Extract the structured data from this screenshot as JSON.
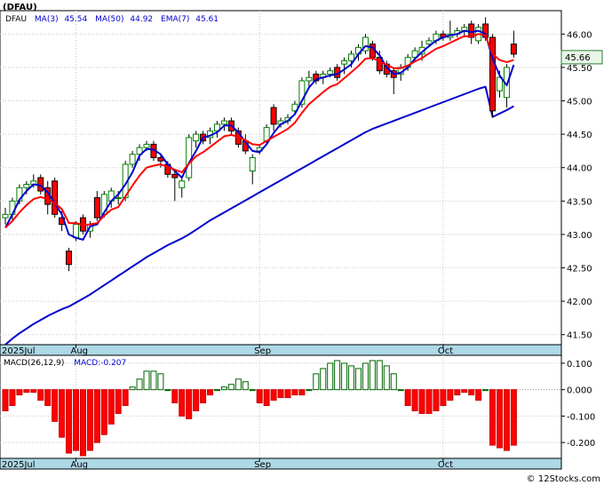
{
  "chart_data": [
    {
      "type": "candlestick",
      "title": "(DFAU)",
      "legend": {
        "ticker": "DFAU",
        "ma3": "MA(3)",
        "ma3_value": "45.54",
        "ma50": "MA(50)",
        "ma50_value": "44.92",
        "ema7": "EMA(7)",
        "ema7_value": "45.61"
      },
      "last_price_label": "45.66",
      "last_price": 45.66,
      "ylim": [
        41.35,
        46.35
      ],
      "y_ticks": [
        {
          "value": 41.5,
          "label": "41.50"
        },
        {
          "value": 42.0,
          "label": "42.00"
        },
        {
          "value": 42.5,
          "label": "42.50"
        },
        {
          "value": 43.0,
          "label": "43.00"
        },
        {
          "value": 43.5,
          "label": "43.50"
        },
        {
          "value": 44.0,
          "label": "44.00"
        },
        {
          "value": 44.5,
          "label": "44.50"
        },
        {
          "value": 45.0,
          "label": "45.00"
        },
        {
          "value": 45.5,
          "label": "45.50"
        },
        {
          "value": 46.0,
          "label": "46.00"
        }
      ],
      "x_labels": [
        {
          "index": 0,
          "label": "2025Jul"
        },
        {
          "index": 10,
          "label": "Aug"
        },
        {
          "index": 36,
          "label": "Sep"
        },
        {
          "index": 62,
          "label": "Oct"
        }
      ],
      "colors": {
        "up": "#008000",
        "down": "#ff0000",
        "ma": "#0000cc",
        "ema": "#ff0000"
      },
      "ohlc": [
        [
          43.25,
          43.4,
          43.15,
          43.3
        ],
        [
          43.3,
          43.55,
          43.2,
          43.5
        ],
        [
          43.5,
          43.75,
          43.45,
          43.7
        ],
        [
          43.7,
          43.8,
          43.6,
          43.75
        ],
        [
          43.75,
          43.9,
          43.7,
          43.8
        ],
        [
          43.85,
          43.9,
          43.6,
          43.65
        ],
        [
          43.7,
          43.8,
          43.3,
          43.45
        ],
        [
          43.8,
          43.85,
          43.25,
          43.3
        ],
        [
          43.25,
          43.35,
          43.05,
          43.15
        ],
        [
          42.75,
          42.8,
          42.45,
          42.55
        ],
        [
          42.95,
          43.2,
          42.9,
          43.15
        ],
        [
          43.25,
          43.3,
          43.0,
          43.05
        ],
        [
          43.05,
          43.2,
          42.95,
          43.15
        ],
        [
          43.55,
          43.65,
          43.2,
          43.25
        ],
        [
          43.3,
          43.65,
          43.25,
          43.6
        ],
        [
          43.5,
          43.7,
          43.4,
          43.65
        ],
        [
          43.55,
          43.65,
          43.45,
          43.55
        ],
        [
          43.55,
          44.1,
          43.5,
          44.05
        ],
        [
          44.05,
          44.25,
          44.0,
          44.2
        ],
        [
          44.2,
          44.35,
          44.1,
          44.3
        ],
        [
          44.3,
          44.4,
          44.25,
          44.35
        ],
        [
          44.35,
          44.4,
          44.1,
          44.15
        ],
        [
          44.15,
          44.2,
          44.0,
          44.1
        ],
        [
          44.05,
          44.1,
          43.85,
          43.9
        ],
        [
          43.9,
          43.95,
          43.5,
          43.85
        ],
        [
          43.7,
          43.85,
          43.55,
          43.8
        ],
        [
          43.85,
          44.5,
          43.8,
          44.45
        ],
        [
          44.4,
          44.55,
          44.3,
          44.5
        ],
        [
          44.5,
          44.55,
          44.35,
          44.4
        ],
        [
          44.45,
          44.6,
          44.35,
          44.55
        ],
        [
          44.55,
          44.7,
          44.45,
          44.65
        ],
        [
          44.65,
          44.75,
          44.55,
          44.7
        ],
        [
          44.7,
          44.75,
          44.5,
          44.55
        ],
        [
          44.55,
          44.6,
          44.3,
          44.35
        ],
        [
          44.4,
          44.5,
          44.2,
          44.25
        ],
        [
          43.95,
          44.2,
          43.75,
          44.15
        ],
        [
          44.25,
          44.35,
          44.2,
          44.3
        ],
        [
          44.4,
          44.65,
          44.35,
          44.6
        ],
        [
          44.9,
          44.95,
          44.55,
          44.65
        ],
        [
          44.65,
          44.75,
          44.6,
          44.7
        ],
        [
          44.7,
          44.8,
          44.65,
          44.75
        ],
        [
          44.85,
          45.0,
          44.8,
          44.95
        ],
        [
          44.95,
          45.35,
          44.9,
          45.3
        ],
        [
          45.3,
          45.45,
          45.2,
          45.35
        ],
        [
          45.4,
          45.45,
          45.25,
          45.3
        ],
        [
          45.35,
          45.45,
          45.25,
          45.4
        ],
        [
          45.4,
          45.5,
          45.35,
          45.45
        ],
        [
          45.5,
          45.55,
          45.3,
          45.35
        ],
        [
          45.55,
          45.65,
          45.4,
          45.6
        ],
        [
          45.6,
          45.75,
          45.5,
          45.7
        ],
        [
          45.7,
          45.85,
          45.6,
          45.8
        ],
        [
          45.75,
          46.0,
          45.7,
          45.95
        ],
        [
          45.85,
          45.9,
          45.6,
          45.65
        ],
        [
          45.65,
          45.75,
          45.4,
          45.45
        ],
        [
          45.55,
          45.6,
          45.35,
          45.4
        ],
        [
          45.45,
          45.5,
          45.1,
          45.35
        ],
        [
          45.4,
          45.55,
          45.3,
          45.5
        ],
        [
          45.5,
          45.7,
          45.45,
          45.65
        ],
        [
          45.65,
          45.8,
          45.6,
          45.75
        ],
        [
          45.7,
          45.9,
          45.6,
          45.8
        ],
        [
          45.85,
          45.95,
          45.8,
          45.9
        ],
        [
          45.9,
          46.05,
          45.85,
          46.0
        ],
        [
          46.0,
          46.05,
          45.9,
          45.95
        ],
        [
          45.95,
          46.2,
          45.9,
          46.0
        ],
        [
          46.0,
          46.1,
          45.95,
          46.05
        ],
        [
          46.05,
          46.15,
          45.95,
          46.1
        ],
        [
          46.15,
          46.2,
          45.85,
          45.95
        ],
        [
          45.9,
          46.15,
          45.85,
          46.1
        ],
        [
          46.15,
          46.25,
          45.9,
          45.95
        ],
        [
          45.95,
          46.0,
          44.75,
          44.85
        ],
        [
          45.15,
          45.45,
          45.05,
          45.35
        ],
        [
          45.05,
          45.55,
          44.9,
          45.5
        ],
        [
          45.85,
          46.05,
          45.65,
          45.7
        ]
      ],
      "ma3": [
        43.1,
        43.3,
        43.52,
        43.65,
        43.75,
        43.73,
        43.63,
        43.47,
        43.3,
        43.0,
        42.95,
        42.92,
        43.12,
        43.15,
        43.33,
        43.5,
        43.6,
        43.75,
        43.93,
        44.18,
        44.28,
        44.27,
        44.2,
        44.05,
        43.95,
        43.85,
        44.07,
        44.25,
        44.45,
        44.48,
        44.53,
        44.63,
        44.63,
        44.53,
        44.38,
        44.25,
        44.23,
        44.35,
        44.52,
        44.65,
        44.7,
        44.8,
        45.0,
        45.2,
        45.32,
        45.35,
        45.38,
        45.4,
        45.47,
        45.55,
        45.7,
        45.82,
        45.8,
        45.68,
        45.5,
        45.4,
        45.42,
        45.5,
        45.63,
        45.73,
        45.82,
        45.9,
        45.95,
        45.98,
        46.0,
        46.05,
        46.03,
        46.05,
        46.0,
        45.63,
        45.38,
        45.23,
        45.54
      ],
      "ma50": [
        41.35,
        41.44,
        41.52,
        41.59,
        41.66,
        41.72,
        41.78,
        41.83,
        41.88,
        41.92,
        41.98,
        42.04,
        42.1,
        42.17,
        42.24,
        42.31,
        42.38,
        42.45,
        42.52,
        42.59,
        42.66,
        42.72,
        42.78,
        42.84,
        42.89,
        42.94,
        43.0,
        43.07,
        43.14,
        43.21,
        43.27,
        43.33,
        43.39,
        43.45,
        43.51,
        43.57,
        43.63,
        43.69,
        43.75,
        43.81,
        43.87,
        43.93,
        43.99,
        44.05,
        44.11,
        44.17,
        44.23,
        44.29,
        44.35,
        44.41,
        44.47,
        44.53,
        44.58,
        44.62,
        44.66,
        44.7,
        44.74,
        44.78,
        44.82,
        44.86,
        44.9,
        44.94,
        44.98,
        45.02,
        45.06,
        45.1,
        45.14,
        45.18,
        45.21,
        44.76,
        44.81,
        44.86,
        44.92
      ],
      "ema7": [
        43.1,
        43.2,
        43.33,
        43.44,
        43.53,
        43.56,
        43.53,
        43.47,
        43.38,
        43.17,
        43.17,
        43.14,
        43.15,
        43.17,
        43.28,
        43.37,
        43.41,
        43.57,
        43.73,
        43.88,
        44.0,
        44.03,
        44.05,
        44.01,
        43.97,
        43.93,
        44.06,
        44.17,
        44.23,
        44.31,
        44.39,
        44.47,
        44.49,
        44.46,
        44.41,
        44.35,
        44.34,
        44.4,
        44.46,
        44.52,
        44.58,
        44.67,
        44.82,
        44.95,
        45.04,
        45.13,
        45.21,
        45.25,
        45.34,
        45.43,
        45.52,
        45.63,
        45.64,
        45.59,
        45.54,
        45.49,
        45.49,
        45.53,
        45.59,
        45.64,
        45.71,
        45.78,
        45.82,
        45.87,
        45.92,
        45.97,
        45.96,
        46.0,
        45.98,
        45.7,
        45.61,
        45.58,
        45.61
      ]
    },
    {
      "type": "bar",
      "title": "MACD(26,12,9)",
      "value_label": "MACD:-0.207",
      "ylim": [
        -0.26,
        0.13
      ],
      "y_ticks": [
        {
          "value": 0.1,
          "label": "0.100"
        },
        {
          "value": 0.0,
          "label": "0.000"
        },
        {
          "value": -0.1,
          "label": "-0.100"
        },
        {
          "value": -0.2,
          "label": "-0.200"
        }
      ],
      "values": [
        -0.08,
        -0.06,
        -0.02,
        -0.01,
        -0.01,
        -0.04,
        -0.06,
        -0.12,
        -0.18,
        -0.24,
        -0.23,
        -0.25,
        -0.23,
        -0.2,
        -0.17,
        -0.13,
        -0.09,
        -0.06,
        0.01,
        0.04,
        0.07,
        0.07,
        0.06,
        0.0,
        -0.05,
        -0.1,
        -0.11,
        -0.08,
        -0.05,
        -0.02,
        0.0,
        0.01,
        0.02,
        0.04,
        0.03,
        0.0,
        -0.05,
        -0.06,
        -0.04,
        -0.03,
        -0.03,
        -0.02,
        -0.02,
        0.0,
        0.06,
        0.08,
        0.1,
        0.11,
        0.1,
        0.09,
        0.08,
        0.1,
        0.11,
        0.11,
        0.09,
        0.06,
        0.0,
        -0.06,
        -0.08,
        -0.09,
        -0.09,
        -0.08,
        -0.06,
        -0.04,
        -0.02,
        -0.01,
        -0.02,
        -0.04,
        0.0,
        -0.21,
        -0.22,
        -0.23,
        -0.21
      ]
    }
  ],
  "watermark": "© 12Stocks.com"
}
